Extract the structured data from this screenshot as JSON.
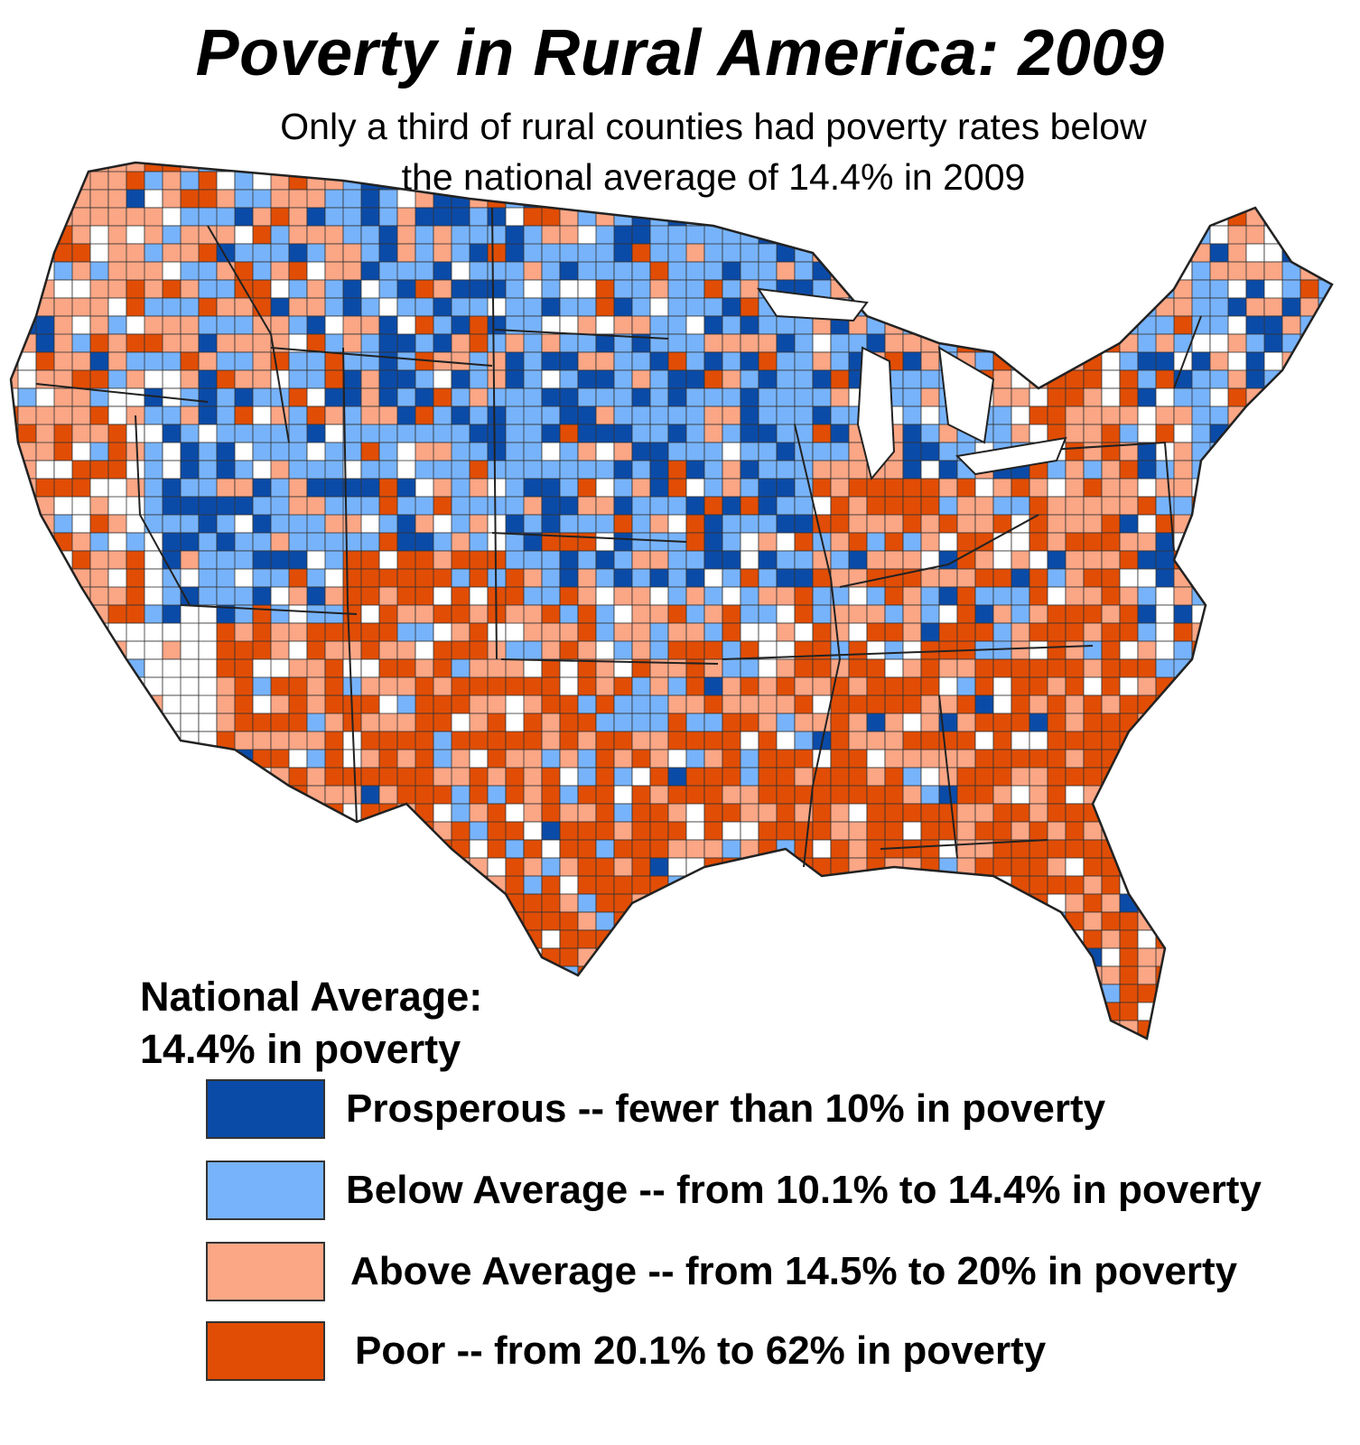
{
  "title": "Poverty in Rural America: 2009",
  "subtitle_line1": "Only a third of rural counties had poverty rates below",
  "subtitle_line2": "the national average of 14.4% in 2009",
  "note_line1": "National Average:",
  "note_line2": "14.4% in poverty",
  "legend": [
    {
      "label": "Prosperous -- fewer than 10% in poverty",
      "color": "#0b4ba8"
    },
    {
      "label": "Below Average -- from 10.1% to 14.4% in poverty",
      "color": "#77b3fb"
    },
    {
      "label": "Above Average -- from 14.5% to 20% in poverty",
      "color": "#fba685"
    },
    {
      "label": "Poor -- from 20.1% to 62% in poverty",
      "color": "#e14d05"
    }
  ],
  "colors": {
    "prosperous": "#0b4ba8",
    "below": "#77b3fb",
    "above": "#fba685",
    "poor": "#e14d05",
    "nonrural": "#ffffff",
    "border": "#333333"
  }
}
